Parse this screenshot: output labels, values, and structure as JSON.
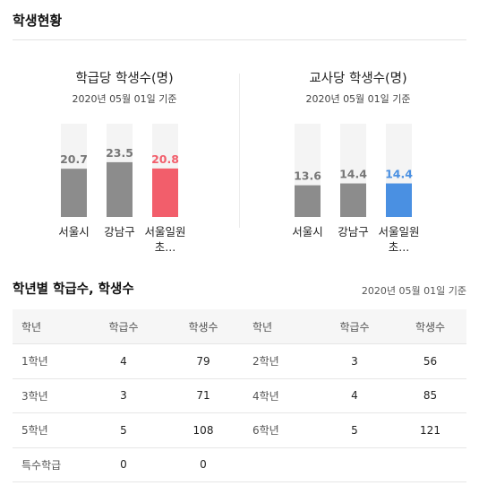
{
  "page": {
    "title": "학생현황"
  },
  "chart_data": [
    {
      "type": "bar",
      "title": "학급당 학생수(명)",
      "subtitle": "2020년 05월 01일 기준",
      "categories": [
        "서울시",
        "강남구",
        "서울일원초..."
      ],
      "values": [
        20.7,
        23.5,
        20.8
      ],
      "value_labels": [
        "20.7",
        "23.5",
        "20.8"
      ],
      "ylim": [
        0,
        40
      ],
      "grid": false,
      "colors": {
        "bar": "#8c8c8c",
        "highlight": "#f25e6b",
        "track": "#f4f4f4",
        "label": "#777777"
      }
    },
    {
      "type": "bar",
      "title": "교사당 학생수(명)",
      "subtitle": "2020년 05월 01일 기준",
      "categories": [
        "서울시",
        "강남구",
        "서울일원초..."
      ],
      "values": [
        13.6,
        14.4,
        14.4
      ],
      "value_labels": [
        "13.6",
        "14.4",
        "14.4"
      ],
      "ylim": [
        0,
        40
      ],
      "grid": false,
      "colors": {
        "bar": "#8c8c8c",
        "highlight": "#4a90e2",
        "track": "#f4f4f4",
        "label": "#777777"
      }
    }
  ],
  "grade_section": {
    "title": "학년별 학급수, 학생수",
    "date": "2020년 05월 01일 기준",
    "headers": [
      "학년",
      "학급수",
      "학생수",
      "학년",
      "학급수",
      "학생수"
    ],
    "rows": [
      [
        "1학년",
        "4",
        "79",
        "2학년",
        "3",
        "56"
      ],
      [
        "3학년",
        "3",
        "71",
        "4학년",
        "4",
        "85"
      ],
      [
        "5학년",
        "5",
        "108",
        "6학년",
        "5",
        "121"
      ],
      [
        "특수학급",
        "0",
        "0",
        "",
        "",
        ""
      ]
    ]
  }
}
